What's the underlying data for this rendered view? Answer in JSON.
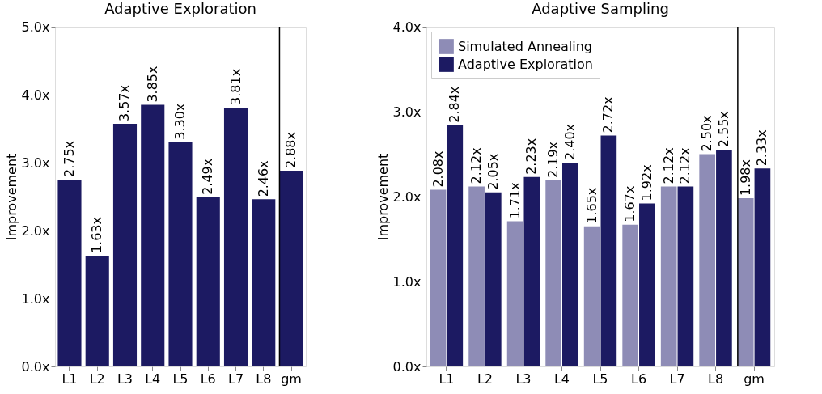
{
  "chart_data": [
    {
      "type": "bar",
      "title": "Adaptive Exploration",
      "ylabel": "Improvement",
      "categories": [
        "L1",
        "L2",
        "L3",
        "L4",
        "L5",
        "L6",
        "L7",
        "L8",
        "gm"
      ],
      "series": [
        {
          "color": "#1c1a62",
          "values": [
            2.75,
            1.63,
            3.57,
            3.85,
            3.3,
            2.49,
            3.81,
            2.46,
            2.88
          ],
          "value_labels": [
            "2.75x",
            "1.63x",
            "3.57x",
            "3.85x",
            "3.30x",
            "2.49x",
            "3.81x",
            "2.46x",
            "2.88x"
          ]
        }
      ],
      "ylim": [
        0,
        5
      ],
      "yticks": [
        {
          "value": 0,
          "label": "0.0x"
        },
        {
          "value": 1,
          "label": "1.0x"
        },
        {
          "value": 2,
          "label": "2.0x"
        },
        {
          "value": 3,
          "label": "3.0x"
        },
        {
          "value": 4,
          "label": "4.0x"
        },
        {
          "value": 5,
          "label": "5.0x"
        }
      ],
      "ref_lines": [
        {
          "axis": "x",
          "value": "gm",
          "color": "#000000"
        }
      ],
      "grid": false,
      "legend": false
    },
    {
      "type": "bar",
      "title": "Adaptive Sampling",
      "ylabel": "Improvement",
      "categories": [
        "L1",
        "L2",
        "L3",
        "L4",
        "L5",
        "L6",
        "L7",
        "L8",
        "gm"
      ],
      "series": [
        {
          "name": "Simulated Annealing",
          "color": "#8e8cb6",
          "values": [
            2.08,
            2.12,
            1.71,
            2.19,
            1.65,
            1.67,
            2.12,
            2.5,
            1.98
          ],
          "value_labels": [
            "2.08x",
            "2.12x",
            "1.71x",
            "2.19x",
            "1.65x",
            "1.67x",
            "2.12x",
            "2.50x",
            "1.98x"
          ]
        },
        {
          "name": "Adaptive Exploration",
          "color": "#1c1a62",
          "values": [
            2.84,
            2.05,
            2.23,
            2.4,
            2.72,
            1.92,
            2.12,
            2.55,
            2.33
          ],
          "value_labels": [
            "2.84x",
            "2.05x",
            "2.23x",
            "2.40x",
            "2.72x",
            "1.92x",
            "2.12x",
            "2.55x",
            "2.33x"
          ]
        }
      ],
      "ylim": [
        0,
        4
      ],
      "yticks": [
        {
          "value": 0,
          "label": "0.0x"
        },
        {
          "value": 1,
          "label": "1.0x"
        },
        {
          "value": 2,
          "label": "2.0x"
        },
        {
          "value": 3,
          "label": "3.0x"
        },
        {
          "value": 4,
          "label": "4.0x"
        }
      ],
      "ref_lines": [
        {
          "axis": "x",
          "value": "gm",
          "color": "#000000"
        }
      ],
      "grid": false,
      "legend": "top left"
    }
  ]
}
